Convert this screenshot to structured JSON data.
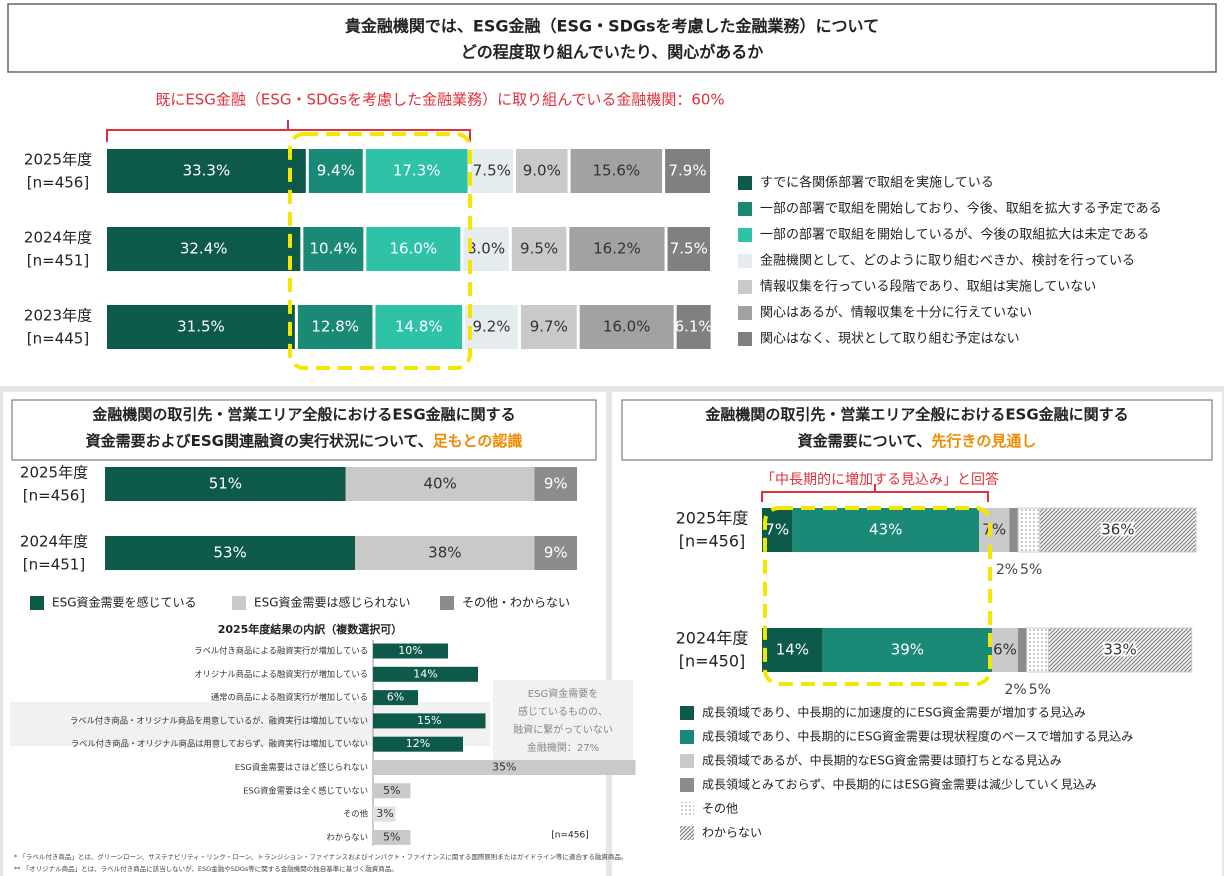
{
  "title": [
    "貴金融機関では、ESG金融（ESG・SDGsを考慮した金融業務）について",
    "どの程度取り組んでいたり、関心があるか"
  ],
  "chart_data": [
    {
      "type": "stacked_bar",
      "annotation": "既にESG金融（ESG・SDGsを考慮した金融業務）に取り組んでいる金融機関：60%",
      "categories": [
        "2025年度",
        "2024年度",
        "2023年度"
      ],
      "category_notes": [
        "[n=456]",
        "[n=451]",
        "[n=445]"
      ],
      "series": [
        {
          "name": "すでに各関係部署で取組を実施している",
          "color": "#0e5a4a",
          "values": [
            33.3,
            32.4,
            31.5
          ],
          "value_labels": [
            "33.3%",
            "32.4%",
            "31.5%"
          ]
        },
        {
          "name": "一部の部署で取組を開始しており、今後、取組を拡大する予定である",
          "color": "#1a8a76",
          "values": [
            9.4,
            10.4,
            12.8
          ],
          "value_labels": [
            "9.4%",
            "10.4%",
            "12.8%"
          ]
        },
        {
          "name": "一部の部署で取組を開始しているが、今後の取組拡大は未定である",
          "color": "#2ec2a6",
          "values": [
            17.3,
            16.0,
            14.8
          ],
          "value_labels": [
            "17.3%",
            "16.0%",
            "14.8%"
          ]
        },
        {
          "name": "金融機関として、どのように取り組むべきか、検討を行っている",
          "color": "#e4ecef",
          "values": [
            7.5,
            8.0,
            9.2
          ],
          "value_labels": [
            "7.5%",
            "8.0%",
            "9.2%"
          ]
        },
        {
          "name": "情報収集を行っている段階であり、取組は実施していない",
          "color": "#c9c9c9",
          "values": [
            9.0,
            9.5,
            9.7
          ],
          "value_labels": [
            "9.0%",
            "9.5%",
            "9.7%"
          ]
        },
        {
          "name": "関心はあるが、情報収集を十分に行えていない",
          "color": "#a2a2a2",
          "values": [
            15.6,
            16.2,
            16.0
          ],
          "value_labels": [
            "15.6%",
            "16.2%",
            "16.0%"
          ]
        },
        {
          "name": "関心はなく、現状として取り組む予定はない",
          "color": "#808080",
          "values": [
            7.9,
            7.5,
            6.1
          ],
          "value_labels": [
            "7.9%",
            "7.5%",
            "6.1%"
          ]
        }
      ]
    },
    {
      "type": "stacked_bar",
      "title": [
        "金融機関の取引先・営業エリア全般におけるESG金融に関する",
        "資金需要およびESG関連融資の実行状況について、"
      ],
      "title_emphasis": "足もとの認識",
      "categories": [
        "2025年度",
        "2024年度"
      ],
      "category_notes": [
        "[n=456]",
        "[n=451]"
      ],
      "series": [
        {
          "name": "ESG資金需要を感じている",
          "color": "#0e5a4a",
          "values": [
            51,
            53
          ],
          "value_labels": [
            "51%",
            "53%"
          ]
        },
        {
          "name": "ESG資金需要は感じられない",
          "color": "#c9c9c9",
          "values": [
            40,
            38
          ],
          "value_labels": [
            "40%",
            "38%"
          ]
        },
        {
          "name": "その他・わからない",
          "color": "#8c8c8c",
          "values": [
            9,
            9
          ],
          "value_labels": [
            "9%",
            "9%"
          ]
        }
      ]
    },
    {
      "type": "bar",
      "title": "2025年度結果の内訳（複数選択可）",
      "categories": [
        "ラベル付き商品による融資実行が増加している",
        "オリジナル商品による融資実行が増加している",
        "通常の商品による融資実行が増加している",
        "ラベル付き商品・オリジナル商品を用意しているが、融資実行は増加していない",
        "ラベル付き商品・オリジナル商品は用意しておらず、融資実行は増加していない",
        "ESG資金需要はさほど感じられない",
        "ESG資金需要は全く感じていない",
        "その他",
        "わからない"
      ],
      "values": [
        10,
        14,
        6,
        15,
        12,
        35,
        5,
        3,
        5
      ],
      "value_labels": [
        "10%",
        "14%",
        "6%",
        "15%",
        "12%",
        "35%",
        "5%",
        "3%",
        "5%"
      ],
      "colors": [
        "#0e5a4a",
        "#0e5a4a",
        "#0e5a4a",
        "#0e5a4a",
        "#0e5a4a",
        "#c9c9c9",
        "#c9c9c9",
        "#e0e0e0",
        "#c9c9c9"
      ],
      "annotation": [
        "ESG資金需要を",
        "感じているものの、",
        "融資に繋がっていない",
        "金融機関：27%"
      ],
      "note": "[n=456]"
    },
    {
      "type": "stacked_bar",
      "title": [
        "金融機関の取引先・営業エリア全般におけるESG金融に関する",
        "資金需要について、"
      ],
      "title_emphasis": "先行きの見通し",
      "annotation": "「中長期的に増加する見込み」と回答",
      "categories": [
        "2025年度",
        "2024年度"
      ],
      "category_notes": [
        "[n=456]",
        "[n=450]"
      ],
      "series": [
        {
          "name": "成長領域であり、中長期的に加速度的にESG資金需要が増加する見込み",
          "color": "#0e5a4a",
          "values": [
            7,
            14
          ],
          "value_labels": [
            "7%",
            "14%"
          ]
        },
        {
          "name": "成長領域であり、中長期的にESG資金需要は現状程度のペースで増加する見込み",
          "color": "#1a8a76",
          "values": [
            43,
            39
          ],
          "value_labels": [
            "43%",
            "39%"
          ]
        },
        {
          "name": "成長領域であるが、中長期的なESG資金需要は頭打ちとなる見込み",
          "color": "#c9c9c9",
          "values": [
            7,
            6
          ],
          "value_labels": [
            "7%",
            "6%"
          ]
        },
        {
          "name": "成長領域とみておらず、中長期的にはESG資金需要は減少していく見込み",
          "color": "#8c8c8c",
          "values": [
            2,
            2
          ],
          "value_labels": [
            "2%",
            "2%"
          ]
        },
        {
          "name": "その他",
          "color": "#ffffff",
          "pattern": "dots",
          "values": [
            5,
            5
          ],
          "value_labels": [
            "5%",
            "5%"
          ]
        },
        {
          "name": "わからない",
          "color": "#ffffff",
          "pattern": "hatch",
          "values": [
            36,
            33
          ],
          "value_labels": [
            "36%",
            "33%"
          ]
        }
      ]
    }
  ],
  "footnotes": [
    "* 「ラベル付き商品」とは、グリーンローン、サステナビリティ・リンク・ローン、トランジション・ファイナンスおよびインパクト・ファイナンスに関する国際原則またはガイドライン等に適合する融資商品。",
    "** 「オリジナル商品」とは、ラベル付き商品に該当しないが、ESG金融やSDGs等に関する金融機関の独自基準に基づく融資商品。"
  ]
}
